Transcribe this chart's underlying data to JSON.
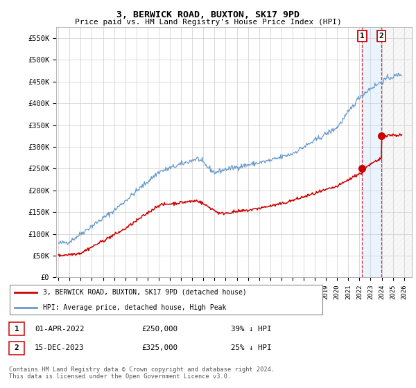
{
  "title": "3, BERWICK ROAD, BUXTON, SK17 9PD",
  "subtitle": "Price paid vs. HM Land Registry's House Price Index (HPI)",
  "ylabel_ticks": [
    "£0",
    "£50K",
    "£100K",
    "£150K",
    "£200K",
    "£250K",
    "£300K",
    "£350K",
    "£400K",
    "£450K",
    "£500K",
    "£550K"
  ],
  "ytick_values": [
    0,
    50000,
    100000,
    150000,
    200000,
    250000,
    300000,
    350000,
    400000,
    450000,
    500000,
    550000
  ],
  "ylim": [
    0,
    575000
  ],
  "xlim_start": 1994.8,
  "xlim_end": 2026.7,
  "transaction1": {
    "date_num": 2022.25,
    "price": 250000,
    "label": "1",
    "pct": "39% ↓ HPI",
    "date_str": "01-APR-2022"
  },
  "transaction2": {
    "date_num": 2023.96,
    "price": 325000,
    "label": "2",
    "pct": "25% ↓ HPI",
    "date_str": "15-DEC-2023"
  },
  "legend_line1": "3, BERWICK ROAD, BUXTON, SK17 9PD (detached house)",
  "legend_line2": "HPI: Average price, detached house, High Peak",
  "footer": "Contains HM Land Registry data © Crown copyright and database right 2024.\nThis data is licensed under the Open Government Licence v3.0.",
  "line_color_red": "#cc0000",
  "line_color_blue": "#6699cc",
  "shade_color": "#ddeeff",
  "background_color": "#ffffff",
  "grid_color": "#cccccc"
}
